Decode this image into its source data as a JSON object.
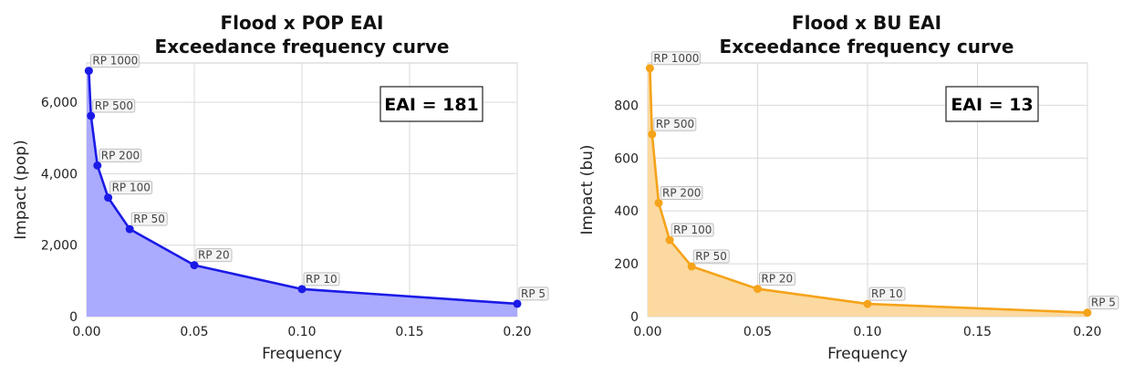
{
  "chart_data": [
    {
      "type": "area",
      "title": "Flood x POP EAI",
      "subtitle": "Exceedance frequency curve",
      "xlabel": "Frequency",
      "ylabel": "Impact (pop)",
      "xlim": [
        0,
        0.2
      ],
      "ylim": [
        0,
        7100
      ],
      "xticks": [
        0,
        0.05,
        0.1,
        0.15,
        0.2
      ],
      "xtick_labels": [
        "0.00",
        "0.05",
        "0.10",
        "0.15",
        "0.20"
      ],
      "yticks": [
        0,
        2000,
        4000,
        6000
      ],
      "ytick_labels": [
        "0",
        "2,000",
        "4,000",
        "6,000"
      ],
      "grid": true,
      "color": "#1a1ae6",
      "fill_color": "#aaaaff",
      "annotation": "EAI = 181",
      "series": [
        {
          "x": [
            0.001,
            0.002,
            0.005,
            0.01,
            0.02,
            0.05,
            0.1,
            0.2
          ],
          "y": [
            6880,
            5620,
            4230,
            3330,
            2450,
            1440,
            770,
            360
          ],
          "labels": [
            "RP 1000",
            "RP 500",
            "RP 200",
            "RP 100",
            "RP 50",
            "RP 20",
            "RP 10",
            "RP 5"
          ]
        }
      ]
    },
    {
      "type": "area",
      "title": "Flood x BU EAI",
      "subtitle": "Exceedance frequency curve",
      "xlabel": "Frequency",
      "ylabel": "Impact (bu)",
      "xlim": [
        0,
        0.2
      ],
      "ylim": [
        0,
        960
      ],
      "xticks": [
        0,
        0.05,
        0.1,
        0.15,
        0.2
      ],
      "xtick_labels": [
        "0.00",
        "0.05",
        "0.10",
        "0.15",
        "0.20"
      ],
      "yticks": [
        0,
        200,
        400,
        600,
        800
      ],
      "ytick_labels": [
        "0",
        "200",
        "400",
        "600",
        "800"
      ],
      "grid": true,
      "color": "#f5a31a",
      "fill_color": "#fbd9a0",
      "annotation": "EAI = 13",
      "series": [
        {
          "x": [
            0.001,
            0.002,
            0.005,
            0.01,
            0.02,
            0.05,
            0.1,
            0.2
          ],
          "y": [
            940,
            690,
            430,
            290,
            190,
            105,
            48,
            15
          ],
          "labels": [
            "RP 1000",
            "RP 500",
            "RP 200",
            "RP 100",
            "RP 50",
            "RP 20",
            "RP 10",
            "RP 5"
          ]
        }
      ]
    }
  ]
}
